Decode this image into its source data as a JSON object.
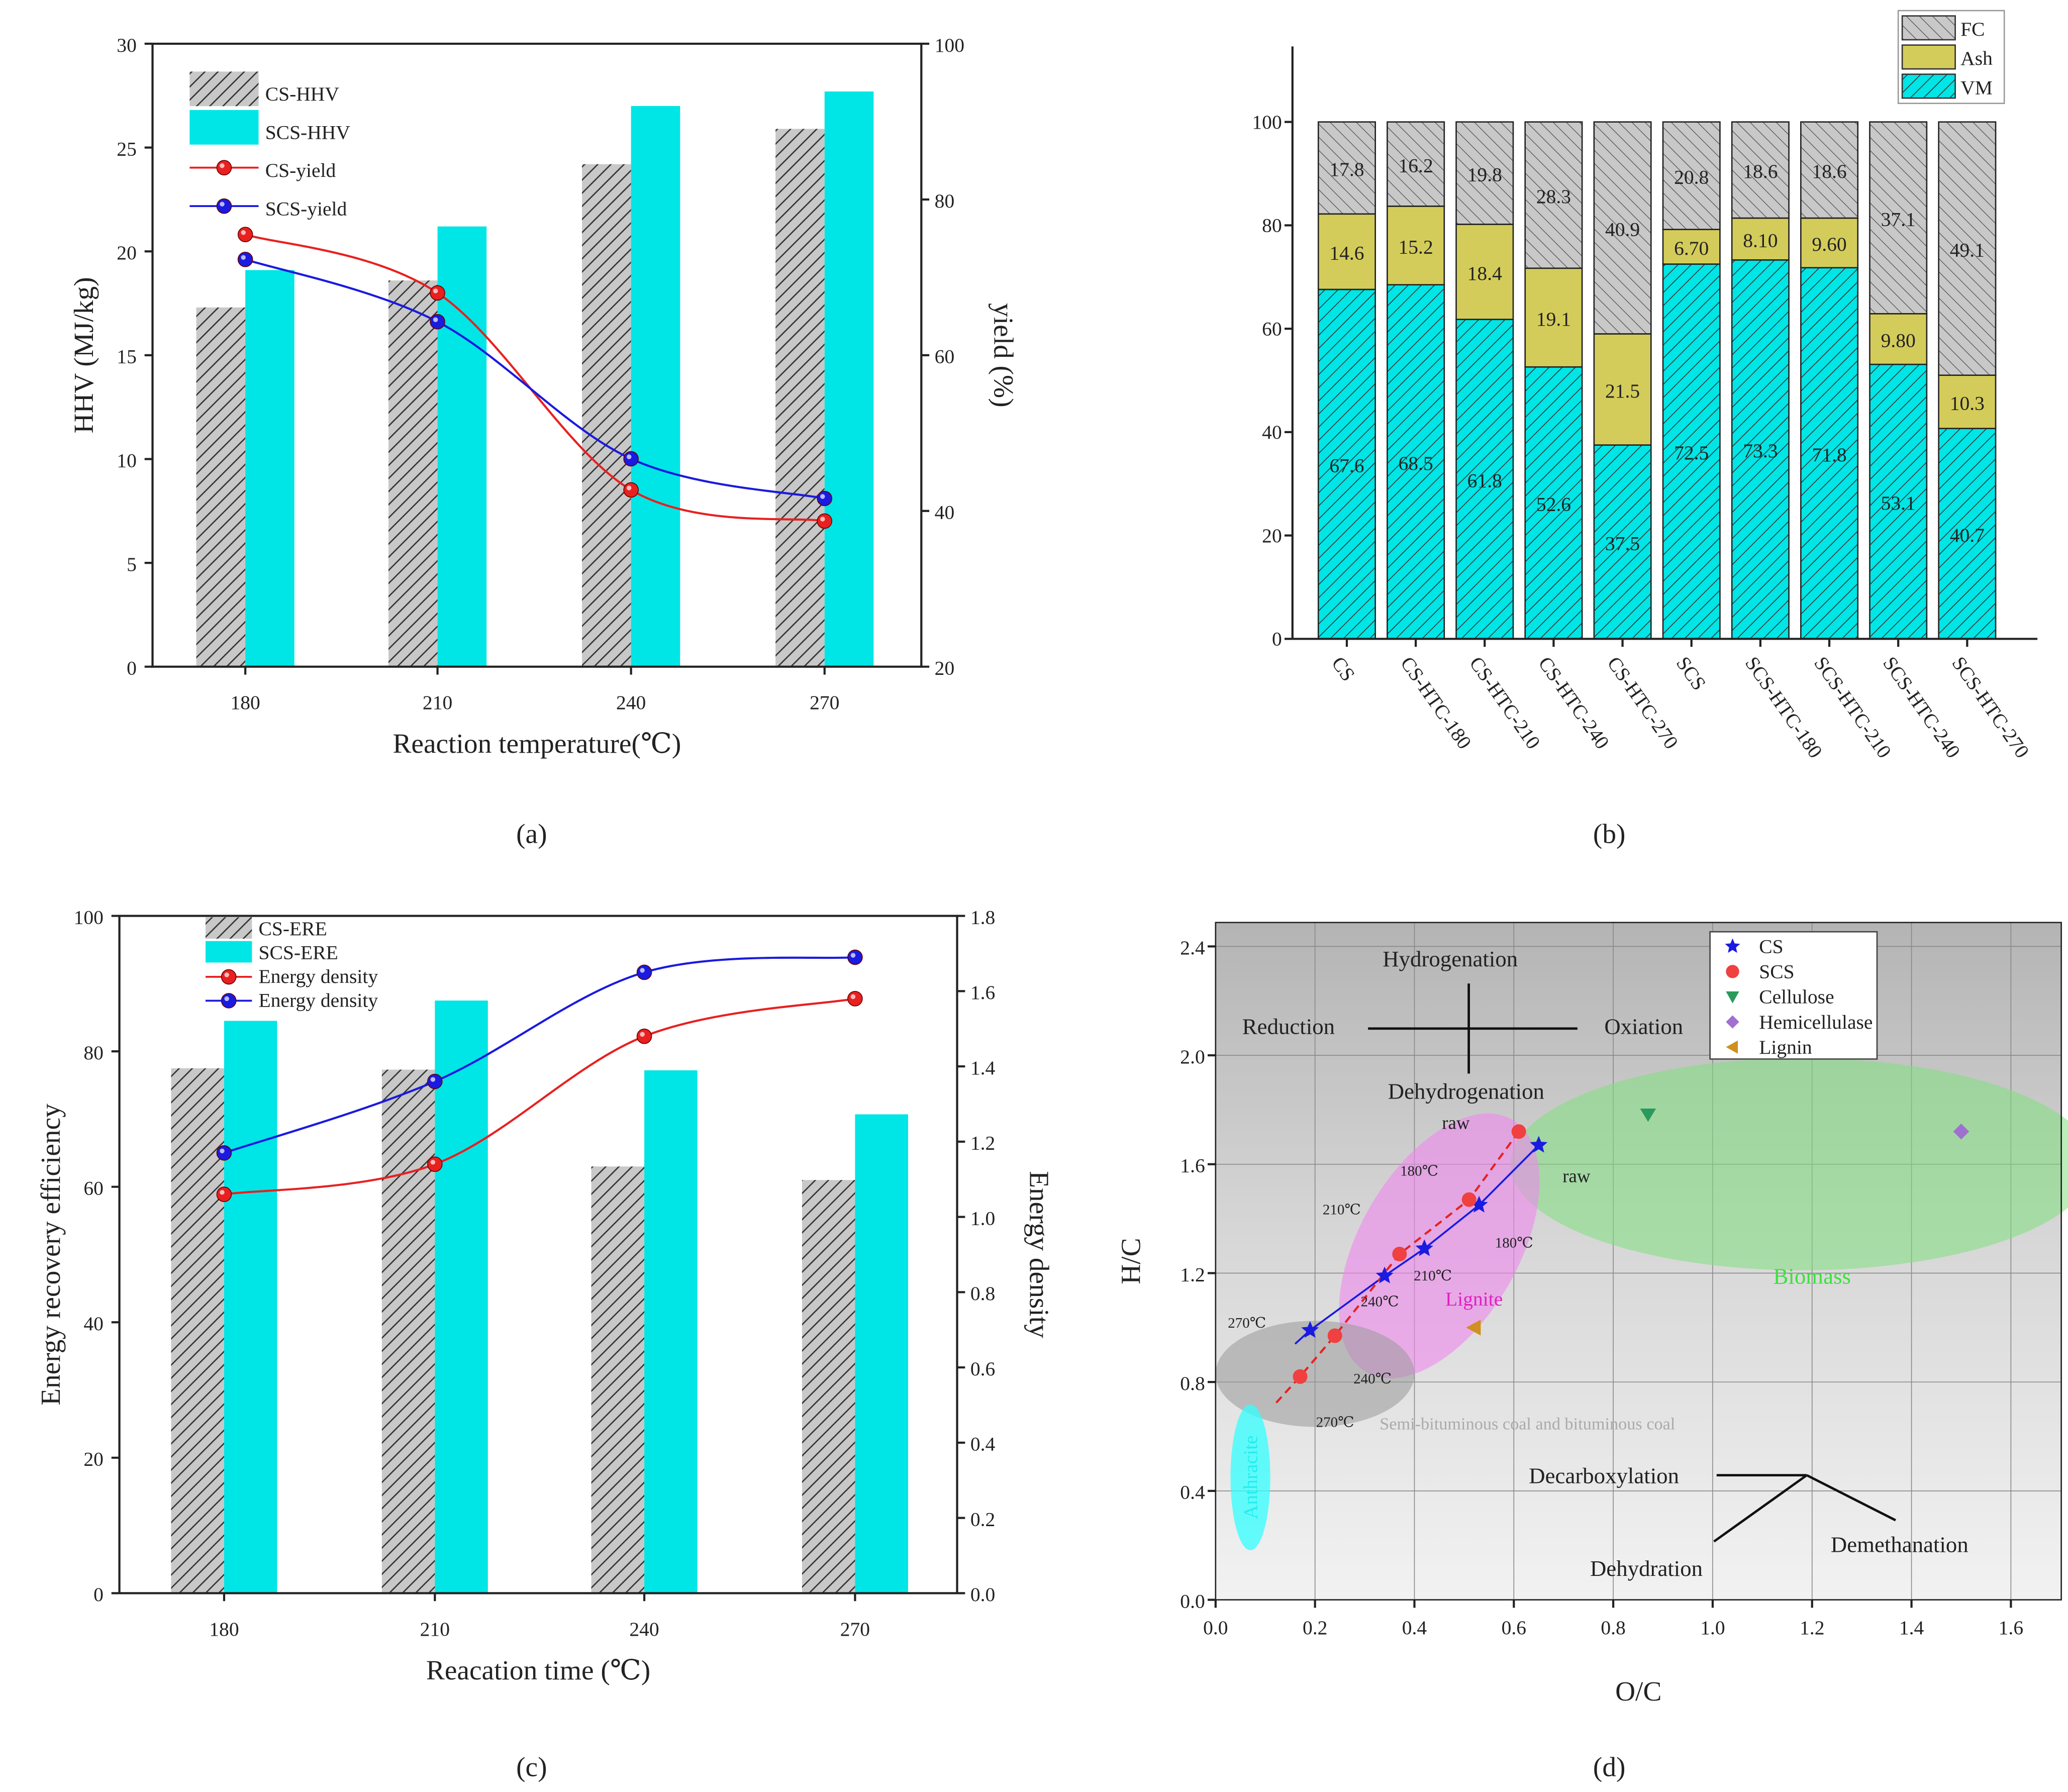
{
  "panel_labels": [
    "(a)",
    "(b)",
    "(c)",
    "(d)"
  ],
  "colors": {
    "cyan": "#00e5e5",
    "hatch_gray": "#c8c8c8",
    "ash": "#d4cc5a",
    "red": "#e82020",
    "blue": "#1a1ae0"
  },
  "chart_data": [
    {
      "id": "a",
      "type": "bar+line",
      "categories": [
        "180",
        "210",
        "240",
        "270"
      ],
      "xlabel": "Reaction temperature(℃)",
      "ylabel": "HHV (MJ/kg)",
      "y2label": "yield (%)",
      "ylim": [
        0,
        30
      ],
      "yticks": [
        0,
        5,
        10,
        15,
        20,
        25,
        30
      ],
      "y2lim": [
        20,
        100
      ],
      "y2ticks": [
        20,
        40,
        60,
        80,
        100
      ],
      "bars": [
        {
          "name": "CS-HHV",
          "values": [
            17.3,
            18.6,
            24.2,
            25.9
          ]
        },
        {
          "name": "SCS-HHV",
          "values": [
            19.1,
            21.2,
            27.0,
            27.7
          ]
        }
      ],
      "lines": [
        {
          "name": "CS-yield",
          "values": [
            75.5,
            68.0,
            42.7,
            38.7
          ]
        },
        {
          "name": "SCS-yield",
          "values": [
            72.3,
            64.3,
            46.7,
            41.6
          ]
        }
      ],
      "legend": "top-left"
    },
    {
      "id": "b",
      "type": "stacked-bar",
      "categories": [
        "CS",
        "CS-HTC-180",
        "CS-HTC-210",
        "CS-HTC-240",
        "CS-HTC-270",
        "SCS",
        "SCS-HTC-180",
        "SCS-HTC-210",
        "SCS-HTC-240",
        "SCS-HTC-270"
      ],
      "ylim": [
        0,
        110
      ],
      "yticks": [
        0,
        20,
        40,
        60,
        80,
        100
      ],
      "series": [
        {
          "name": "VM",
          "values": [
            67.6,
            68.5,
            61.8,
            52.6,
            37.5,
            72.5,
            73.3,
            71.8,
            53.1,
            40.7
          ],
          "labels": [
            "67.6",
            "68.5",
            "61.8",
            "52.6",
            "37.5",
            "72.5",
            "73.3",
            "71.8",
            "53.1",
            "40.7"
          ]
        },
        {
          "name": "Ash",
          "values": [
            14.6,
            15.2,
            18.4,
            19.1,
            21.5,
            6.7,
            8.1,
            9.6,
            9.8,
            10.3
          ],
          "labels": [
            "14.6",
            "15.2",
            "18.4",
            "19.1",
            "21.5",
            "6.70",
            "8.10",
            "9.60",
            "9.80",
            "10.3"
          ]
        },
        {
          "name": "FC",
          "values": [
            17.8,
            16.2,
            19.8,
            28.3,
            40.9,
            20.8,
            18.6,
            18.6,
            37.1,
            49.1
          ],
          "labels": [
            "17.8",
            "16.2",
            "19.8",
            "28.3",
            "40.9",
            "20.8",
            "18.6",
            "18.6",
            "37.1",
            "49.1"
          ]
        }
      ],
      "legend": "top-right"
    },
    {
      "id": "c",
      "type": "bar+line",
      "categories": [
        "180",
        "210",
        "240",
        "270"
      ],
      "xlabel": "Reacation time (℃)",
      "ylabel": "Energy recovery efficiency",
      "y2label": "Energy density",
      "ylim": [
        0,
        100
      ],
      "yticks": [
        0,
        20,
        40,
        60,
        80,
        100
      ],
      "y2lim": [
        0,
        1.8
      ],
      "y2ticks": [
        "0.0",
        "0.2",
        "0.4",
        "0.6",
        "0.8",
        "1.0",
        "1.2",
        "1.4",
        "1.6",
        "1.8"
      ],
      "bars": [
        {
          "name": "CS-ERE",
          "values": [
            77.5,
            77.3,
            63.0,
            61.0
          ]
        },
        {
          "name": "SCS-ERE",
          "values": [
            84.5,
            87.5,
            77.2,
            70.7
          ]
        }
      ],
      "lines": [
        {
          "name": "Energy density",
          "values": [
            1.06,
            1.14,
            1.48,
            1.58
          ]
        },
        {
          "name": "Energy density",
          "values": [
            1.17,
            1.36,
            1.65,
            1.69
          ]
        }
      ],
      "legend": "top-left"
    },
    {
      "id": "d",
      "type": "scatter",
      "xlabel": "O/C",
      "ylabel": "H/C",
      "xlim": [
        0,
        1.7
      ],
      "xticks": [
        "0.0",
        "0.2",
        "0.4",
        "0.6",
        "0.8",
        "1.0",
        "1.2",
        "1.4",
        "1.6"
      ],
      "ylim": [
        0,
        2.5
      ],
      "yticks": [
        "0.0",
        "0.4",
        "0.8",
        "1.2",
        "1.6",
        "2.0",
        "2.4"
      ],
      "series": [
        {
          "name": "CS",
          "marker": "star",
          "x": [
            0.65,
            0.53,
            0.42,
            0.34,
            0.19
          ],
          "y": [
            1.67,
            1.45,
            1.29,
            1.19,
            0.99
          ],
          "labels": [
            "raw",
            "180℃",
            "210℃",
            "240℃",
            "270℃"
          ]
        },
        {
          "name": "SCS",
          "marker": "circle",
          "x": [
            0.61,
            0.51,
            0.37,
            0.24,
            0.17
          ],
          "y": [
            1.72,
            1.47,
            1.27,
            0.97,
            0.82
          ],
          "labels": [
            "raw",
            "180℃",
            "210℃",
            "240℃",
            "270℃"
          ]
        },
        {
          "name": "Cellulose",
          "marker": "triangle-down",
          "x": [
            0.87
          ],
          "y": [
            1.78
          ]
        },
        {
          "name": "Hemicellulase",
          "marker": "diamond",
          "x": [
            1.5
          ],
          "y": [
            1.72
          ]
        },
        {
          "name": "Lignin",
          "marker": "triangle-left",
          "x": [
            0.52
          ],
          "y": [
            1.0
          ]
        }
      ],
      "regions": [
        "Biomass",
        "Lignite",
        "Semi-bituminous coal and bituminous coal",
        "Anthracite"
      ],
      "annotations": [
        "Hydrogenation",
        "Reduction",
        "Oxiation",
        "Dehydrogenation",
        "Decarboxylation",
        "Dehydration",
        "Demethanation"
      ],
      "legend": "top-right"
    }
  ]
}
